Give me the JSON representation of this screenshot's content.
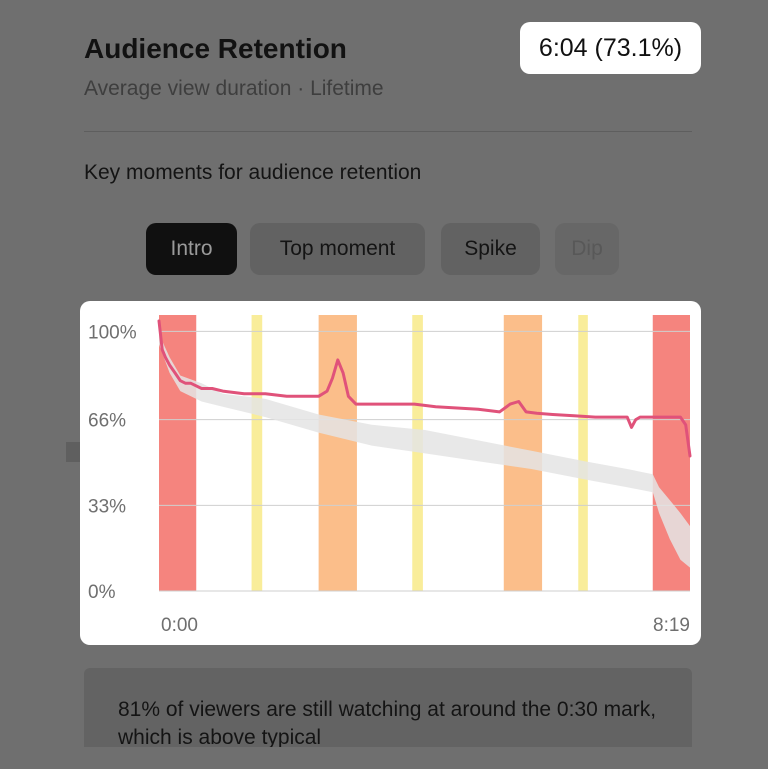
{
  "header": {
    "title": "Audience Retention",
    "subtitle": "Average view duration · Lifetime",
    "average_view_duration": "6:04 (73.1%)"
  },
  "moments": {
    "heading": "Key moments for audience retention",
    "chips": [
      {
        "label": "Intro",
        "selected": true
      },
      {
        "label": "Top moment",
        "selected": false
      },
      {
        "label": "Spike",
        "selected": false
      },
      {
        "label": "Dip",
        "selected": false
      }
    ]
  },
  "insight": {
    "text": "81% of viewers are still watching at around the 0:30 mark, which is above typical"
  },
  "chart_data": {
    "type": "line",
    "y_tick_labels": [
      "100%",
      "66%",
      "33%",
      "0%"
    ],
    "x_tick_labels": [
      "0:00",
      "8:19"
    ],
    "ylim": [
      0,
      104
    ],
    "xlim": [
      0,
      499
    ],
    "grid": true,
    "colors": {
      "line": "#e0527a",
      "typical_band": "#e4e4e4",
      "intro_region": "#f5847e",
      "top_moment_region": "#fbbe8a",
      "spike_region": "#f9ed9a"
    },
    "highlight_regions": [
      {
        "kind": "intro",
        "start_sec": 0,
        "end_sec": 35
      },
      {
        "kind": "spike",
        "start_sec": 87,
        "end_sec": 97
      },
      {
        "kind": "top-moment",
        "start_sec": 150,
        "end_sec": 186
      },
      {
        "kind": "spike",
        "start_sec": 238,
        "end_sec": 248
      },
      {
        "kind": "top-moment",
        "start_sec": 324,
        "end_sec": 360
      },
      {
        "kind": "spike",
        "start_sec": 394,
        "end_sec": 403
      },
      {
        "kind": "intro",
        "start_sec": 464,
        "end_sec": 499
      }
    ],
    "series": [
      {
        "x": [
          0,
          3,
          6,
          10,
          15,
          20,
          25,
          30,
          40,
          50,
          60,
          80,
          100,
          120,
          140,
          150,
          158,
          163,
          168,
          173,
          178,
          185,
          200,
          220,
          240,
          260,
          280,
          300,
          320,
          330,
          338,
          345,
          355,
          370,
          390,
          410,
          430,
          440,
          444,
          448,
          452,
          460,
          480,
          490,
          495,
          499
        ],
        "y": [
          104,
          93,
          90,
          87,
          84,
          81,
          80,
          80,
          78,
          78,
          77,
          76,
          76,
          75,
          75,
          75,
          77,
          82,
          89,
          84,
          75,
          72,
          72,
          72,
          72,
          71,
          70.5,
          70,
          69,
          72,
          73,
          69,
          68.5,
          68,
          67.5,
          67,
          67,
          67,
          63,
          66,
          67,
          67,
          67,
          67,
          64,
          52
        ]
      }
    ],
    "typical_band": {
      "x": [
        0,
        10,
        20,
        40,
        60,
        100,
        150,
        200,
        250,
        300,
        350,
        400,
        440,
        464,
        470,
        480,
        490,
        499
      ],
      "upper": [
        99,
        90,
        83,
        80,
        76,
        74,
        68,
        64,
        62,
        58,
        54,
        50,
        47,
        45,
        40,
        35,
        30,
        25
      ],
      "lower": [
        95,
        84,
        77,
        73,
        71,
        67,
        61,
        56,
        53,
        50,
        47,
        43,
        40,
        38,
        30,
        20,
        12,
        9
      ]
    }
  }
}
